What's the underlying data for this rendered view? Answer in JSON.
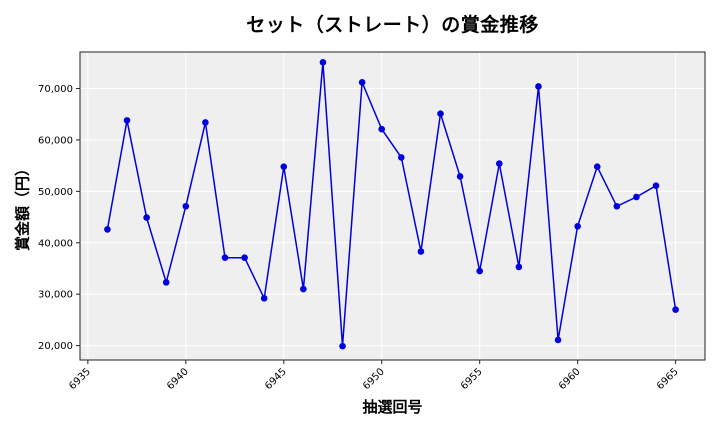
{
  "chart_data": {
    "type": "line",
    "title": "セット（ストレート）の賞金推移",
    "xlabel": "抽選回号",
    "ylabel": "賞金額（円）",
    "x": [
      6936,
      6937,
      6938,
      6939,
      6940,
      6941,
      6942,
      6943,
      6944,
      6945,
      6946,
      6947,
      6948,
      6949,
      6950,
      6951,
      6952,
      6953,
      6954,
      6955,
      6956,
      6957,
      6958,
      6959,
      6960,
      6961,
      6962,
      6963,
      6964,
      6965
    ],
    "series": [
      {
        "name": "セット（ストレート）",
        "color": "#0000dd",
        "values": [
          42600,
          63800,
          44900,
          32300,
          47100,
          63400,
          37100,
          37100,
          29200,
          54800,
          31000,
          75100,
          19900,
          71200,
          62100,
          56600,
          38300,
          65100,
          52900,
          34500,
          55400,
          35300,
          70400,
          21100,
          43200,
          54800,
          47100,
          48900,
          51100,
          27000
        ]
      }
    ],
    "xticks": [
      6935,
      6940,
      6945,
      6950,
      6955,
      6960,
      6965
    ],
    "xtick_labels": [
      "6935",
      "6940",
      "6945",
      "6950",
      "6955",
      "6960",
      "6965"
    ],
    "yticks": [
      20000,
      30000,
      40000,
      50000,
      60000,
      70000
    ],
    "ytick_labels": [
      "20,000",
      "30,000",
      "40,000",
      "50,000",
      "60,000",
      "70,000"
    ],
    "xlim": [
      6934.6,
      6966.5
    ],
    "ylim": [
      17200,
      77100
    ],
    "grid": true,
    "legend": "none",
    "background": "#efefef",
    "grid_color": "#ffffff"
  }
}
